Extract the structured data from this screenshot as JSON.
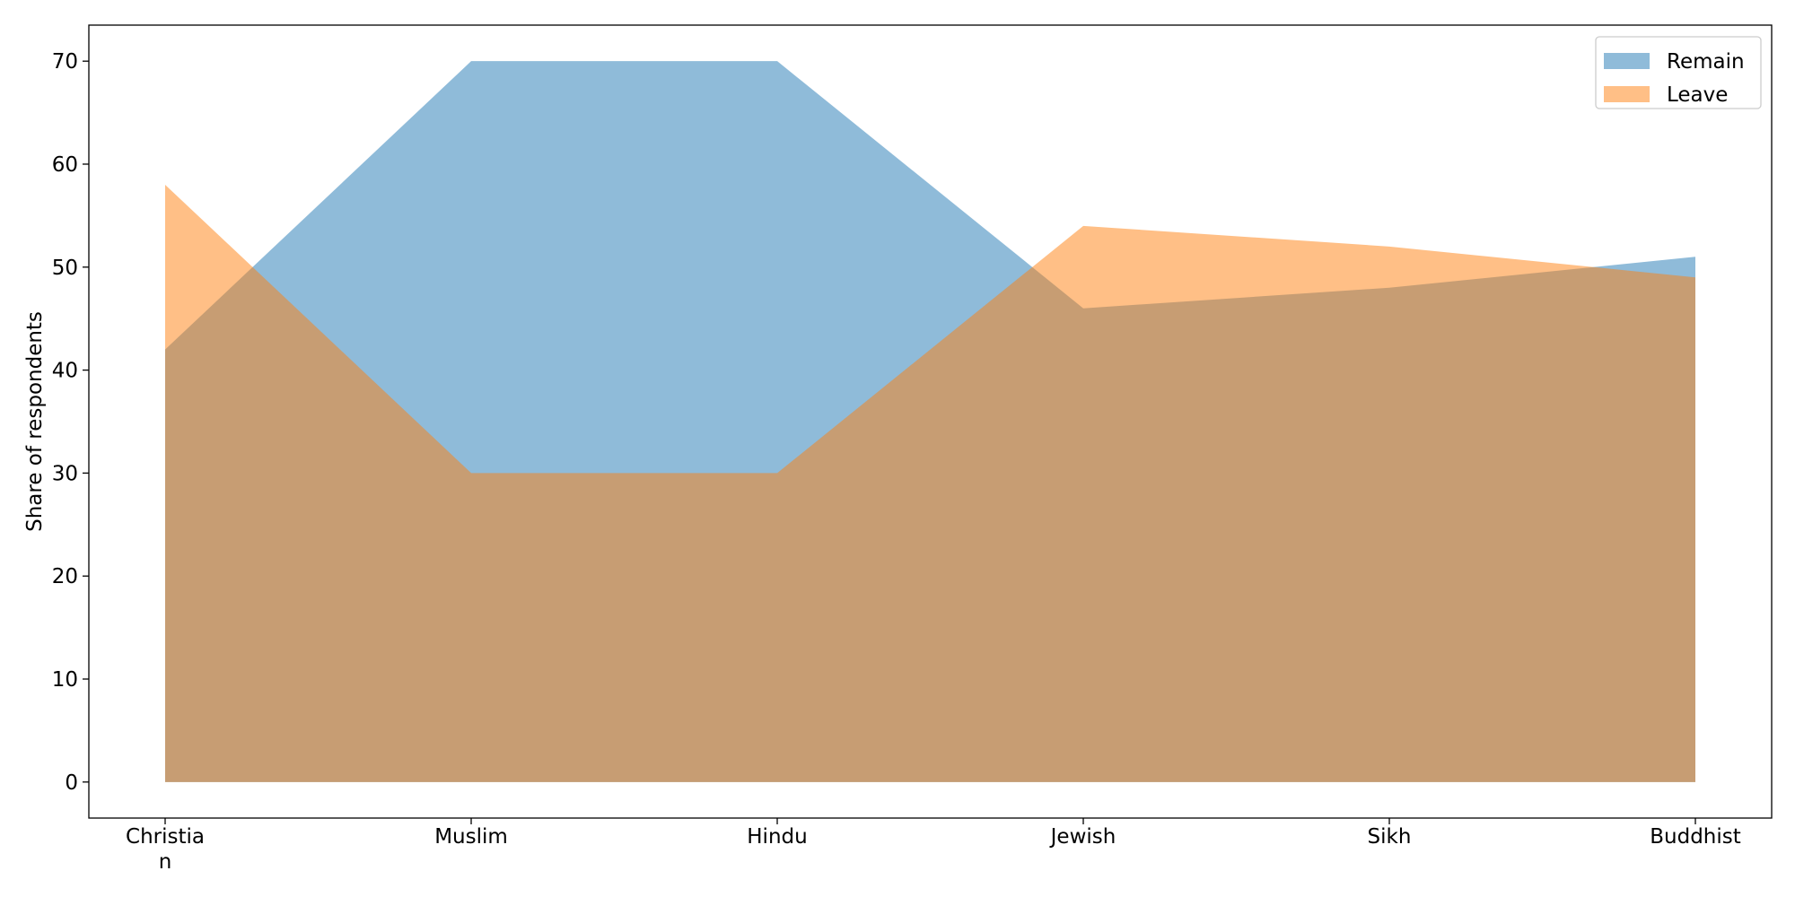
{
  "chart_data": {
    "type": "area",
    "title": "",
    "xlabel": "",
    "ylabel": "Share of respondents",
    "categories": [
      "Christia\nn",
      "Muslim",
      "Hindu",
      "Jewish",
      "Sikh",
      "Buddhist"
    ],
    "series": [
      {
        "name": "Remain",
        "values": [
          42,
          70,
          70,
          46,
          48,
          51
        ],
        "color": "#1f77b4",
        "opacity": 0.5
      },
      {
        "name": "Leave",
        "values": [
          58,
          30,
          30,
          54,
          52,
          49
        ],
        "color": "#ff7f0e",
        "opacity": 0.5
      }
    ],
    "ylim": [
      -3.5,
      73.5
    ],
    "yticks": [
      0,
      10,
      20,
      30,
      40,
      50,
      60,
      70
    ],
    "stacked": false,
    "grid": false,
    "legend_position": "top-right"
  }
}
